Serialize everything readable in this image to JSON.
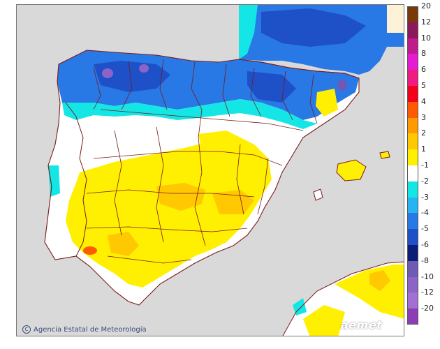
{
  "credit": {
    "copyright_symbol": "C",
    "agency": "Agencia Estatal de Meteorología"
  },
  "logo": {
    "wordmark": "aemet"
  },
  "legend": {
    "items": [
      {
        "label": "20",
        "color": "#7a3a08"
      },
      {
        "label": "12",
        "color": "#8c1a5a"
      },
      {
        "label": "10",
        "color": "#c01a8c"
      },
      {
        "label": "8",
        "color": "#e61ad2"
      },
      {
        "label": "6",
        "color": "#f01a80"
      },
      {
        "label": "5",
        "color": "#f5001a"
      },
      {
        "label": "4",
        "color": "#ff5a00"
      },
      {
        "label": "3",
        "color": "#ff9a00"
      },
      {
        "label": "2",
        "color": "#ffc800"
      },
      {
        "label": "1",
        "color": "#ffef00"
      },
      {
        "label": "-1",
        "color": "#ffffff"
      },
      {
        "label": "-2",
        "color": "#14e6e6"
      },
      {
        "label": "-3",
        "color": "#28b4f0"
      },
      {
        "label": "-4",
        "color": "#2878e6"
      },
      {
        "label": "-5",
        "color": "#1e50c8"
      },
      {
        "label": "-6",
        "color": "#0a1e78"
      },
      {
        "label": "-8",
        "color": "#6e5ab4"
      },
      {
        "label": "-10",
        "color": "#8c64c8"
      },
      {
        "label": "-12",
        "color": "#a070d2"
      },
      {
        "label": "-20",
        "color": "#8c3cb4"
      }
    ]
  },
  "colors": {
    "sea": "#d9d9d9",
    "land_base": "#ffffff",
    "border_lines": "#7a1a1a",
    "france_overlay": "#2a5ad2"
  }
}
